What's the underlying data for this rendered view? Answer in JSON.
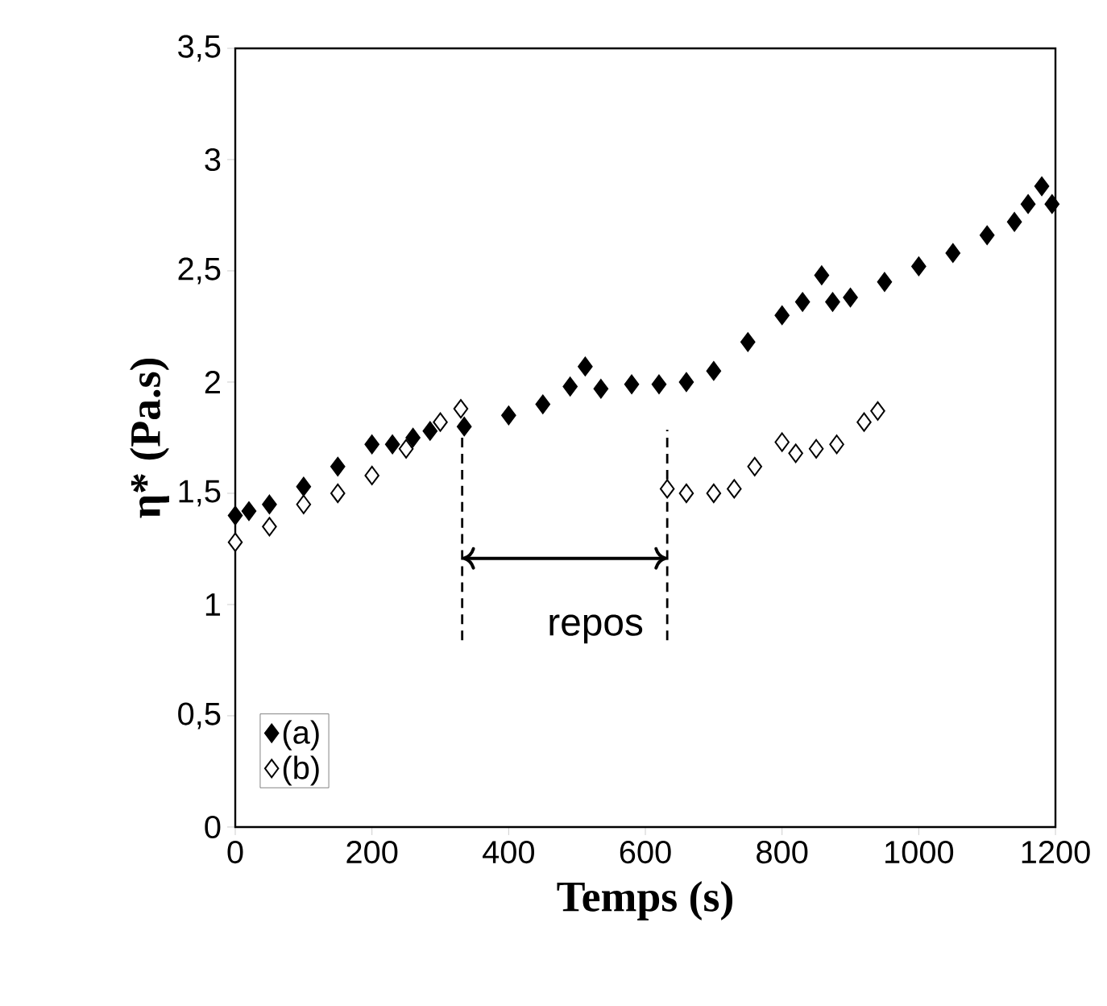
{
  "chart_data": {
    "type": "scatter",
    "xlabel": "Temps (s)",
    "ylabel": "η* (Pa.s)",
    "xlim": [
      0,
      1200
    ],
    "xticks": [
      0,
      200,
      400,
      600,
      800,
      1000,
      1200
    ],
    "ylim": [
      0,
      3.5
    ],
    "yticks": [
      0,
      {
        "value": 0.5,
        "label": "0,5"
      },
      1,
      {
        "value": 1.5,
        "label": "1,5"
      },
      2,
      {
        "value": 2.5,
        "label": "2,5"
      },
      3,
      {
        "value": 3.5,
        "label": "3,5"
      }
    ],
    "grid": false,
    "legend": "bottom left",
    "marker": "diamond",
    "series": [
      {
        "name": "(a)",
        "color": "#000000",
        "x": [
          0,
          20,
          50,
          100,
          150,
          200,
          230,
          260,
          285,
          335,
          400,
          450,
          490,
          512,
          535,
          580,
          620,
          660,
          700,
          750,
          800,
          830,
          858,
          874,
          900,
          950,
          1000,
          1050,
          1100,
          1140,
          1160,
          1180,
          1195
        ],
        "values": [
          1.4,
          1.42,
          1.45,
          1.53,
          1.62,
          1.72,
          1.72,
          1.75,
          1.78,
          1.8,
          1.85,
          1.9,
          1.98,
          2.07,
          1.97,
          1.99,
          1.99,
          2.0,
          2.05,
          2.18,
          2.3,
          2.36,
          2.48,
          2.36,
          2.38,
          2.45,
          2.52,
          2.58,
          2.66,
          2.72,
          2.8,
          2.88,
          2.8
        ]
      },
      {
        "name": "(b)",
        "color": "#000000",
        "x": [
          0,
          50,
          100,
          150,
          200,
          250,
          300,
          330,
          632,
          660,
          700,
          730,
          760,
          800,
          820,
          850,
          880,
          920,
          940
        ],
        "values": [
          1.28,
          1.35,
          1.45,
          1.5,
          1.58,
          1.7,
          1.82,
          1.88,
          1.52,
          1.5,
          1.5,
          1.52,
          1.62,
          1.73,
          1.68,
          1.7,
          1.72,
          1.82,
          1.87
        ]
      }
    ],
    "ref_lines": [
      {
        "axis": "x",
        "value": 332,
        "line_style": "dashed"
      },
      {
        "axis": "x",
        "value": 632,
        "line_style": "dashed"
      }
    ],
    "annotations": [
      "repos"
    ]
  }
}
